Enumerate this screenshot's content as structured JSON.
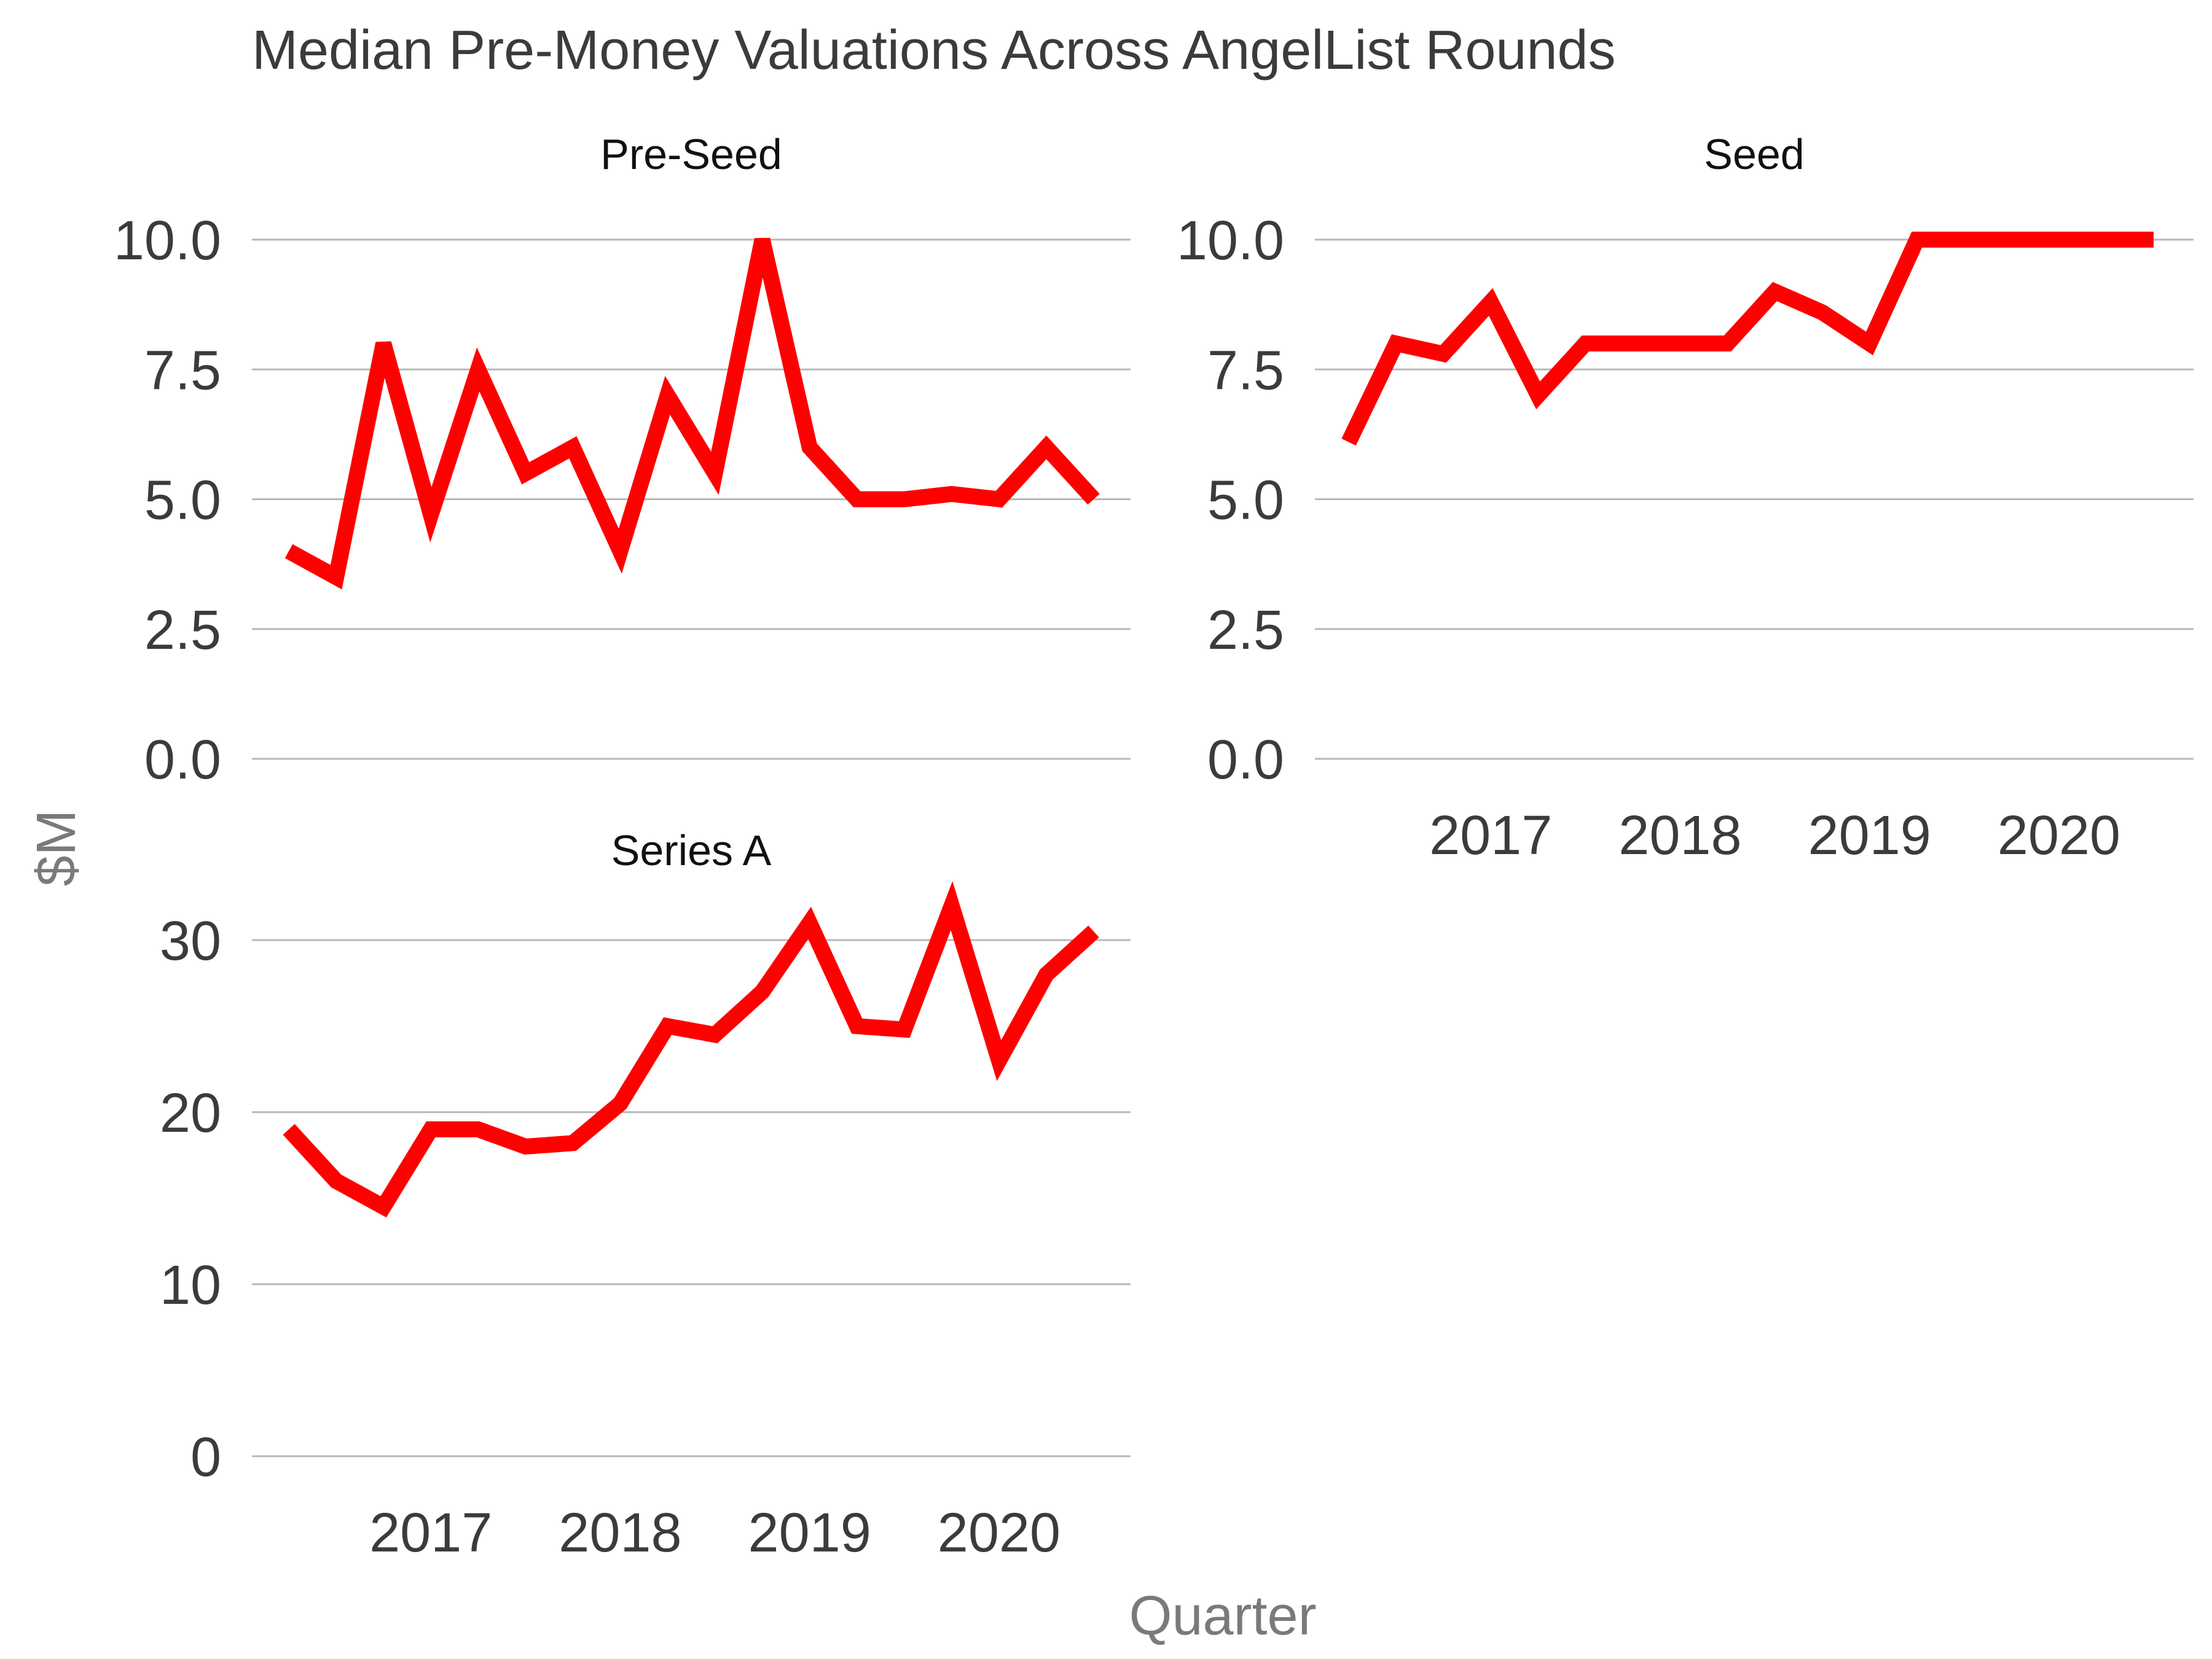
{
  "chart_data": {
    "type": "line",
    "title": "Median Pre-Money Valuations Across AngelList Rounds",
    "xlabel": "Quarter",
    "ylabel": "$M",
    "grid": "horizontal",
    "line_color": "#ff0000",
    "x": [
      "2016-Q2",
      "2016-Q3",
      "2016-Q4",
      "2017-Q1",
      "2017-Q2",
      "2017-Q3",
      "2017-Q4",
      "2018-Q1",
      "2018-Q2",
      "2018-Q3",
      "2018-Q4",
      "2019-Q1",
      "2019-Q2",
      "2019-Q3",
      "2019-Q4",
      "2020-Q1",
      "2020-Q2",
      "2020-Q3"
    ],
    "x_ticks": [
      "2017",
      "2018",
      "2019",
      "2020"
    ],
    "panels": [
      {
        "name": "Pre-Seed",
        "ylim": [
          0,
          10.8
        ],
        "y_ticks": [
          "0.0",
          "2.5",
          "5.0",
          "7.5",
          "10.0"
        ],
        "y_tick_values": [
          0,
          2.5,
          5,
          7.5,
          10
        ],
        "values": [
          4.0,
          3.5,
          8.0,
          4.7,
          7.5,
          5.5,
          6.0,
          4.0,
          7.0,
          5.5,
          10.0,
          6.0,
          5.0,
          5.0,
          5.1,
          5.0,
          6.0,
          5.0
        ],
        "show_x_ticks": false
      },
      {
        "name": "Seed",
        "ylim": [
          0,
          10.8
        ],
        "y_ticks": [
          "0.0",
          "2.5",
          "5.0",
          "7.5",
          "10.0"
        ],
        "y_tick_values": [
          0,
          2.5,
          5,
          7.5,
          10
        ],
        "values": [
          6.1,
          8.0,
          7.8,
          8.8,
          7.0,
          8.0,
          8.0,
          8.0,
          8.0,
          9.0,
          8.6,
          8.0,
          10.0,
          10.0,
          10.0,
          10.0,
          10.0,
          10.0
        ],
        "show_x_ticks": true
      },
      {
        "name": "Series A",
        "ylim": [
          0,
          33
        ],
        "y_ticks": [
          "0",
          "10",
          "20",
          "30"
        ],
        "y_tick_values": [
          0,
          10,
          20,
          30
        ],
        "values": [
          19.0,
          16.0,
          14.5,
          19.0,
          19.0,
          18.0,
          18.2,
          20.5,
          25.0,
          24.5,
          27.0,
          31.0,
          25.0,
          24.8,
          32.0,
          23.0,
          28.0,
          30.5
        ],
        "show_x_ticks": true
      }
    ]
  }
}
